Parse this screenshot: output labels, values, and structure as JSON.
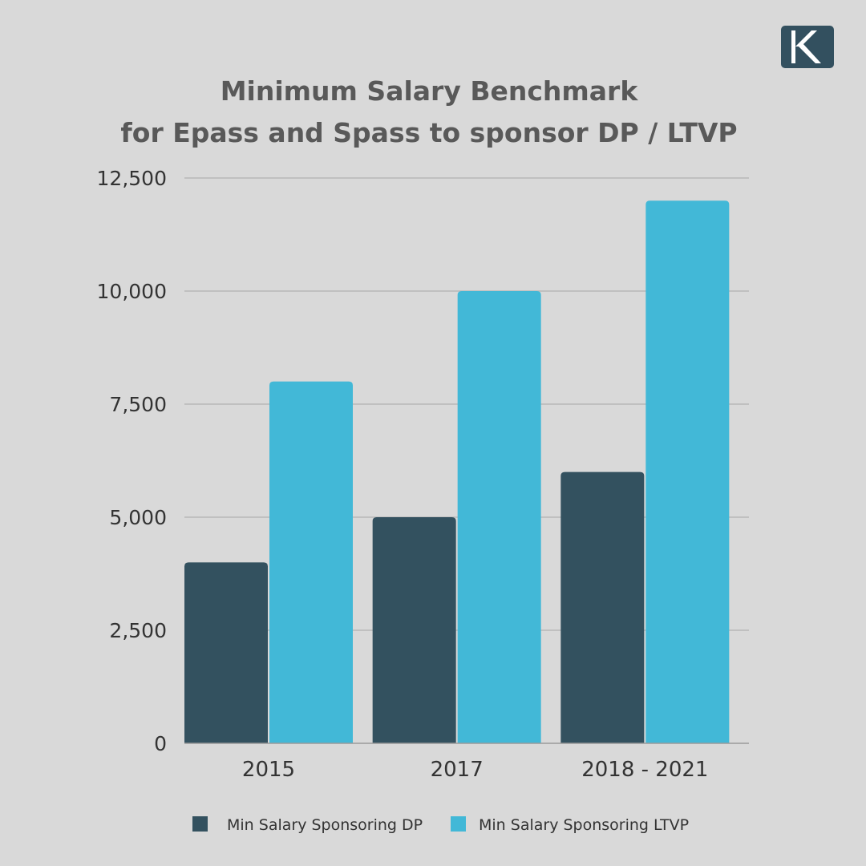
{
  "brand": {
    "logo_icon": "k-logo-icon",
    "colors": {
      "background": "#d9d9d9",
      "logo_bg": "#33505f",
      "series_dp": "#33515f",
      "series_ltvp": "#42b8d7",
      "title": "#595959",
      "grid": "#b8b8b8"
    }
  },
  "chart_data": {
    "type": "bar",
    "title": [
      "Minimum Salary Benchmark",
      "for Epass and Spass to sponsor DP / LTVP"
    ],
    "categories": [
      "2015",
      "2017",
      "2018 - 2021"
    ],
    "series": [
      {
        "name": "Min Salary Sponsoring DP",
        "values": [
          4000,
          5000,
          6000
        ]
      },
      {
        "name": "Min Salary Sponsoring LTVP",
        "values": [
          8000,
          10000,
          12000
        ]
      }
    ],
    "ylim": [
      0,
      12500
    ],
    "yticks": [
      0,
      2500,
      5000,
      7500,
      10000,
      12500
    ],
    "ytick_labels": [
      "0",
      "2,500",
      "5,000",
      "7,500",
      "10,000",
      "12,500"
    ],
    "grid": true,
    "legend": "bottom",
    "xlabel": "",
    "ylabel": ""
  }
}
